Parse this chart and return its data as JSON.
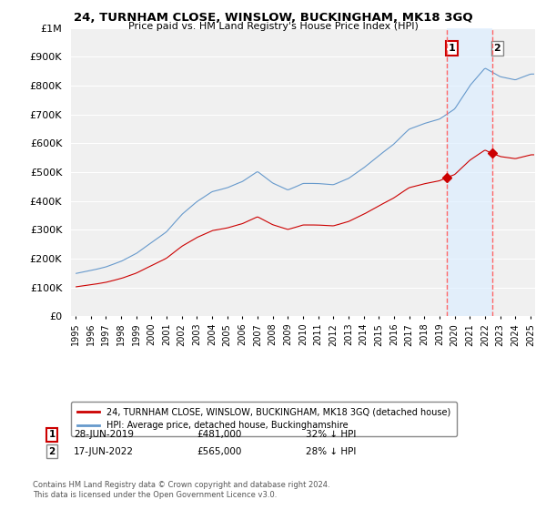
{
  "title": "24, TURNHAM CLOSE, WINSLOW, BUCKINGHAM, MK18 3GQ",
  "subtitle": "Price paid vs. HM Land Registry's House Price Index (HPI)",
  "legend_label_red": "24, TURNHAM CLOSE, WINSLOW, BUCKINGHAM, MK18 3GQ (detached house)",
  "legend_label_blue": "HPI: Average price, detached house, Buckinghamshire",
  "transaction1_date": "28-JUN-2019",
  "transaction1_price": "£481,000",
  "transaction1_hpi": "32% ↓ HPI",
  "transaction2_date": "17-JUN-2022",
  "transaction2_price": "£565,000",
  "transaction2_hpi": "28% ↓ HPI",
  "copyright": "Contains HM Land Registry data © Crown copyright and database right 2024.\nThis data is licensed under the Open Government Licence v3.0.",
  "vline1_x": 2019.5,
  "vline2_x": 2022.5,
  "ylim": [
    0,
    1000000
  ],
  "xlim_start": 1994.7,
  "xlim_end": 2025.3,
  "background_color": "#ffffff",
  "plot_bg_color": "#f0f0f0",
  "red_color": "#cc0000",
  "blue_color": "#6699cc",
  "vline_color": "#ff6666",
  "shade_color": "#ddeeff",
  "grid_color": "#ffffff"
}
